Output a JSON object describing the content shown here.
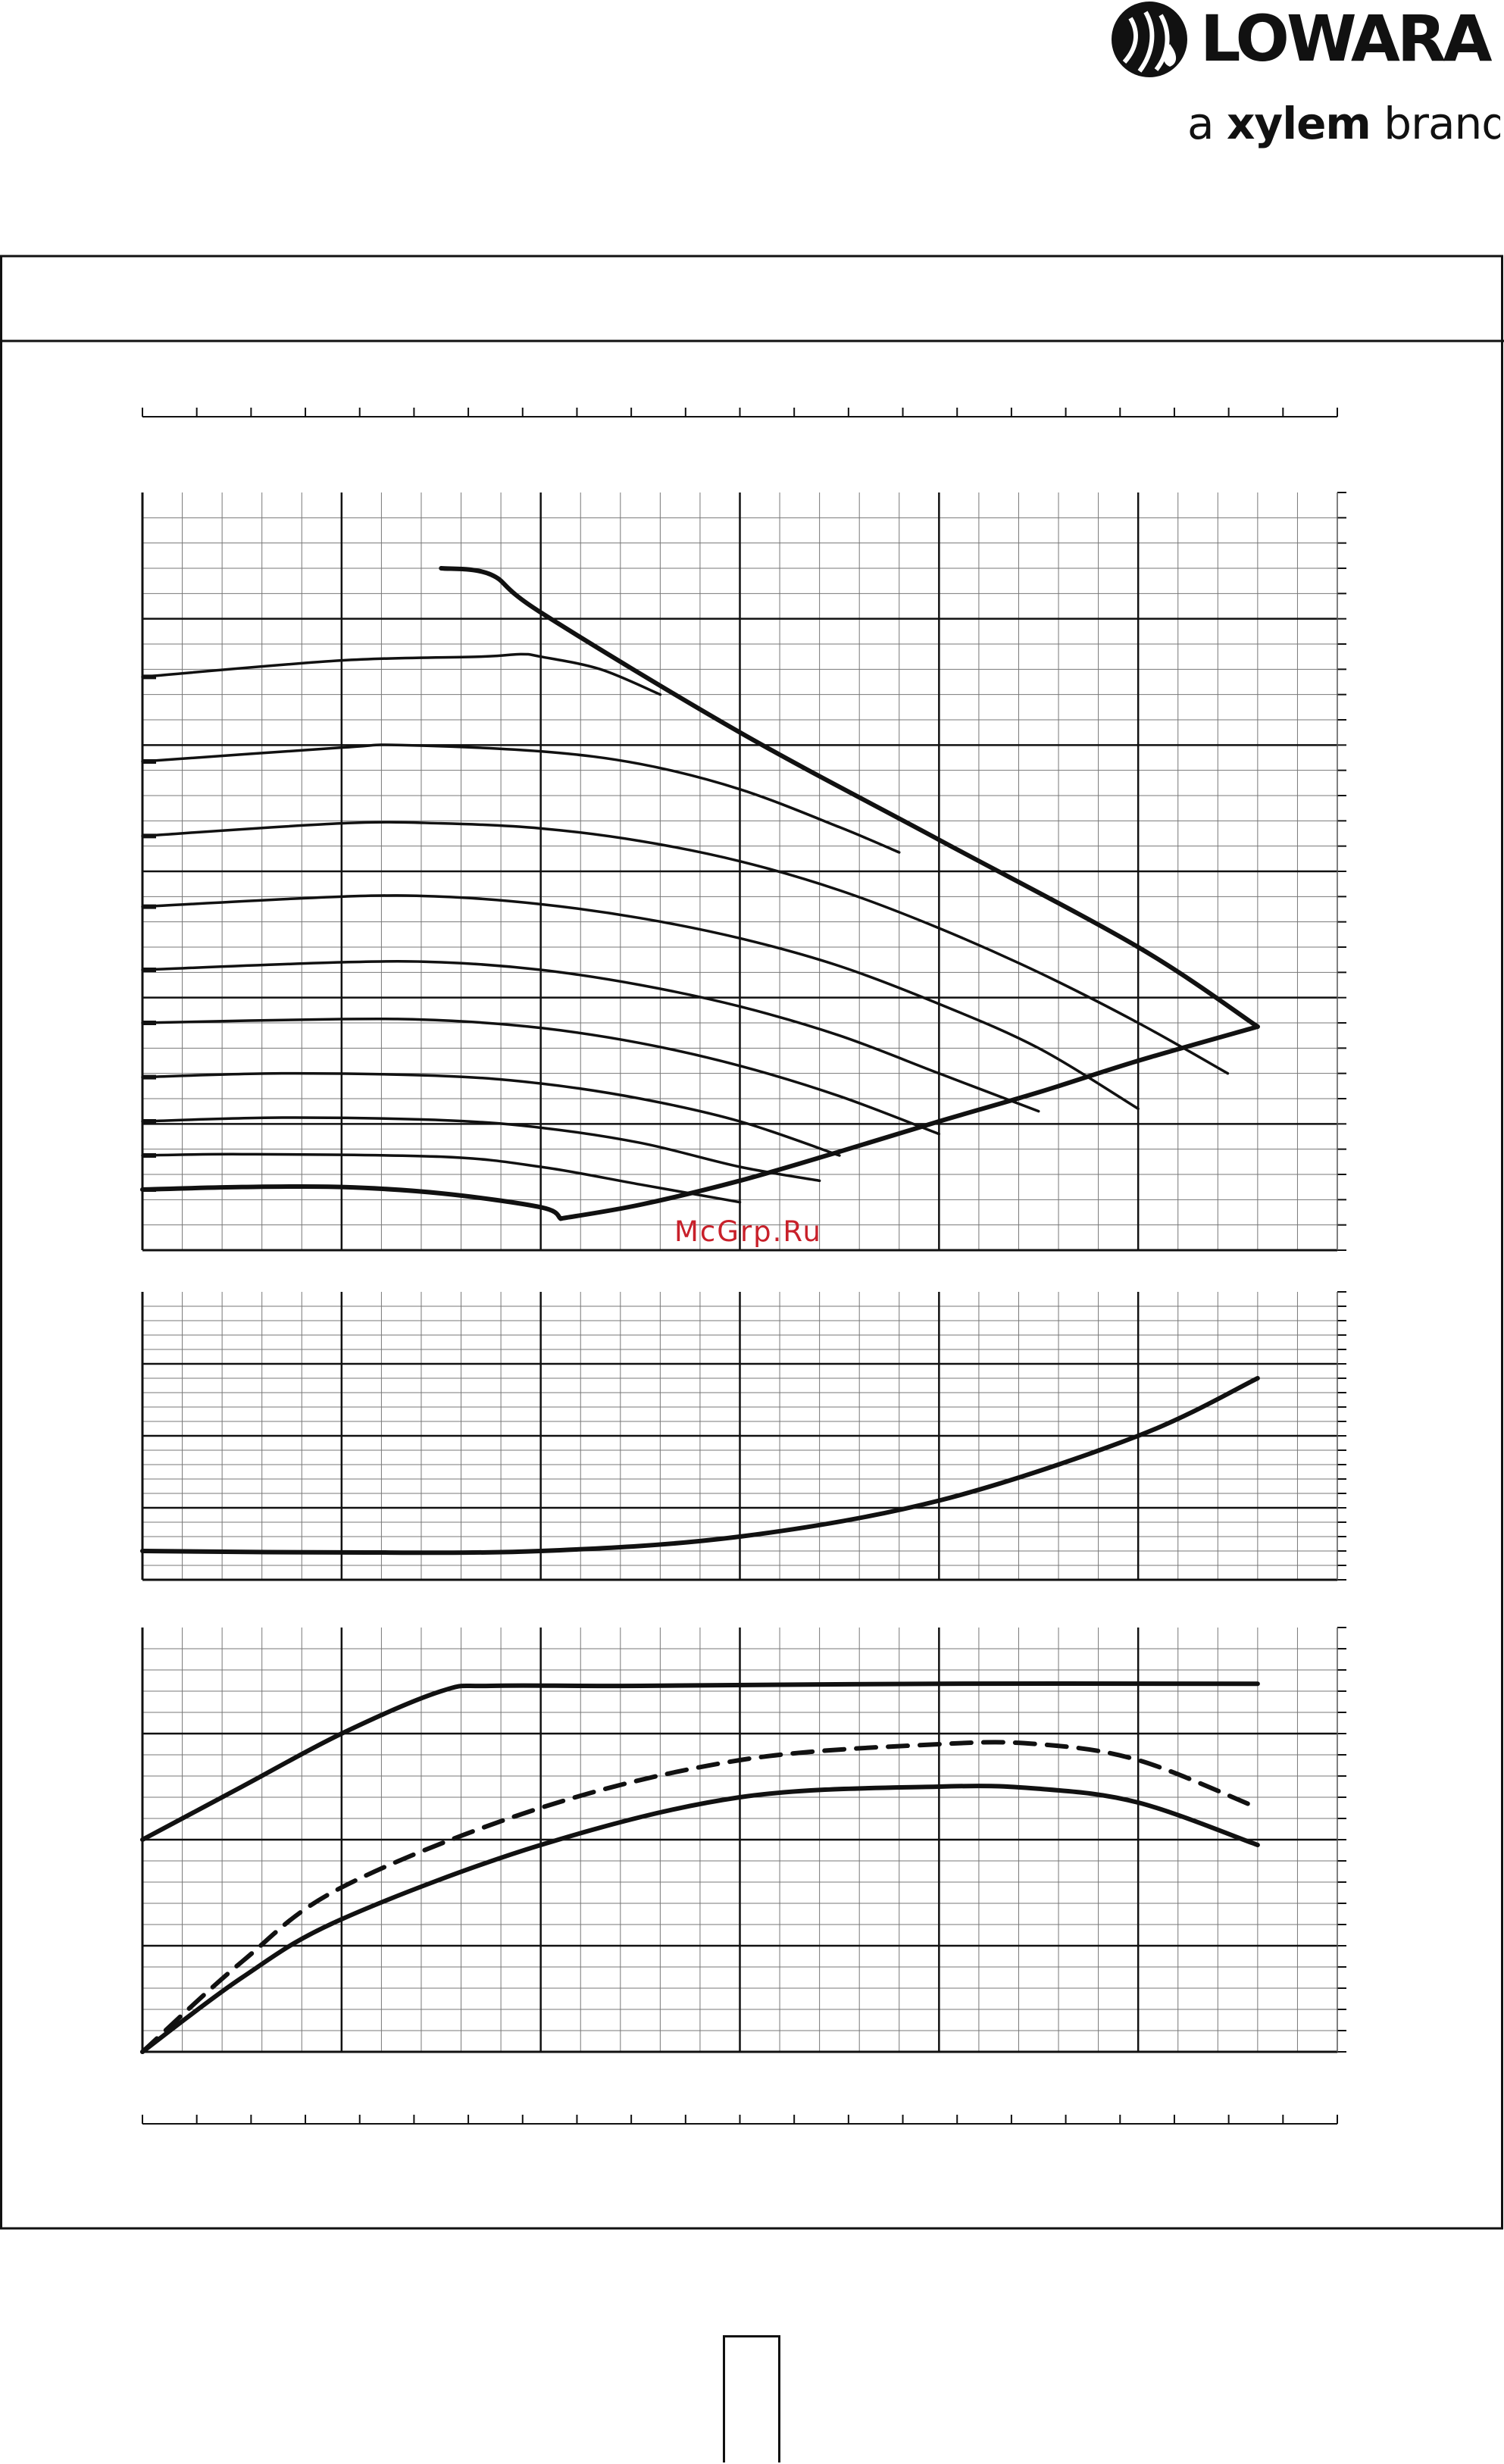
{
  "brand": {
    "name": "LOWARA",
    "tagline_prefix": "a ",
    "tagline_bold": "xylem",
    "tagline_suffix": " brand",
    "logo_icon": "lowara-drop-logo-icon",
    "color": "#111111"
  },
  "watermark": {
    "text": "McGrp.Ru",
    "color": "#c8202a"
  },
  "page_number": {
    "text": ""
  },
  "chart_data": [
    {
      "type": "line",
      "panel": "head-flow curves",
      "grid": true,
      "xlim": [
        0,
        6
      ],
      "ylim": [
        0,
        6
      ],
      "series": [
        {
          "style": "max-envelope",
          "values": [
            [
              1.5,
              5.4
            ],
            [
              1.75,
              5.35
            ],
            [
              2.0,
              5.05
            ],
            [
              3.0,
              4.1
            ],
            [
              4.0,
              3.25
            ],
            [
              5.0,
              2.4
            ],
            [
              5.6,
              1.77
            ]
          ]
        },
        {
          "style": "min-envelope",
          "values": [
            [
              2.1,
              0.25
            ],
            [
              2.5,
              0.36
            ],
            [
              3.0,
              0.55
            ],
            [
              3.5,
              0.78
            ],
            [
              4.0,
              1.02
            ],
            [
              4.5,
              1.25
            ],
            [
              5.0,
              1.5
            ],
            [
              5.6,
              1.77
            ]
          ]
        },
        {
          "style": "speed-curve",
          "values": [
            [
              0.0,
              4.54
            ],
            [
              1.0,
              4.67
            ],
            [
              1.7,
              4.7
            ],
            [
              1.9,
              4.72
            ],
            [
              2.0,
              4.7
            ],
            [
              2.3,
              4.6
            ],
            [
              2.6,
              4.4
            ]
          ]
        },
        {
          "style": "speed-curve",
          "values": [
            [
              0.0,
              3.87
            ],
            [
              1.0,
              3.98
            ],
            [
              1.3,
              4.0
            ],
            [
              2.0,
              3.95
            ],
            [
              2.5,
              3.85
            ],
            [
              3.0,
              3.65
            ],
            [
              3.5,
              3.35
            ],
            [
              3.8,
              3.15
            ]
          ]
        },
        {
          "style": "speed-curve",
          "values": [
            [
              0.0,
              3.28
            ],
            [
              1.0,
              3.38
            ],
            [
              1.5,
              3.38
            ],
            [
              2.0,
              3.34
            ],
            [
              2.5,
              3.24
            ],
            [
              3.0,
              3.08
            ],
            [
              3.5,
              2.85
            ],
            [
              4.0,
              2.55
            ],
            [
              4.5,
              2.2
            ],
            [
              5.0,
              1.8
            ],
            [
              5.45,
              1.4
            ]
          ]
        },
        {
          "style": "speed-curve",
          "values": [
            [
              0.0,
              2.72
            ],
            [
              1.0,
              2.8
            ],
            [
              1.5,
              2.8
            ],
            [
              2.0,
              2.74
            ],
            [
              2.5,
              2.63
            ],
            [
              3.0,
              2.47
            ],
            [
              3.5,
              2.25
            ],
            [
              4.0,
              1.95
            ],
            [
              4.5,
              1.6
            ],
            [
              5.0,
              1.12
            ]
          ]
        },
        {
          "style": "speed-curve",
          "values": [
            [
              0.0,
              2.22
            ],
            [
              1.0,
              2.28
            ],
            [
              1.5,
              2.28
            ],
            [
              2.0,
              2.22
            ],
            [
              2.5,
              2.1
            ],
            [
              3.0,
              1.93
            ],
            [
              3.5,
              1.7
            ],
            [
              4.0,
              1.4
            ],
            [
              4.5,
              1.1
            ]
          ]
        },
        {
          "style": "speed-curve",
          "values": [
            [
              0.0,
              1.8
            ],
            [
              1.0,
              1.83
            ],
            [
              1.5,
              1.82
            ],
            [
              2.0,
              1.76
            ],
            [
              2.5,
              1.64
            ],
            [
              3.0,
              1.46
            ],
            [
              3.5,
              1.22
            ],
            [
              4.0,
              0.92
            ]
          ]
        },
        {
          "style": "speed-curve",
          "values": [
            [
              0.0,
              1.37
            ],
            [
              0.7,
              1.4
            ],
            [
              1.5,
              1.38
            ],
            [
              2.0,
              1.32
            ],
            [
              2.5,
              1.2
            ],
            [
              3.0,
              1.02
            ],
            [
              3.5,
              0.75
            ]
          ]
        },
        {
          "style": "speed-curve",
          "values": [
            [
              0.0,
              1.02
            ],
            [
              0.7,
              1.05
            ],
            [
              1.5,
              1.03
            ],
            [
              2.0,
              0.97
            ],
            [
              2.5,
              0.85
            ],
            [
              3.0,
              0.66
            ],
            [
              3.4,
              0.55
            ]
          ]
        },
        {
          "style": "speed-curve",
          "values": [
            [
              0.0,
              0.75
            ],
            [
              0.5,
              0.76
            ],
            [
              1.5,
              0.74
            ],
            [
              2.0,
              0.66
            ],
            [
              2.5,
              0.52
            ],
            [
              3.0,
              0.38
            ]
          ]
        },
        {
          "style": "min-curve",
          "values": [
            [
              0.0,
              0.48
            ],
            [
              0.5,
              0.5
            ],
            [
              1.0,
              0.5
            ],
            [
              1.5,
              0.45
            ],
            [
              2.0,
              0.34
            ],
            [
              2.1,
              0.25
            ]
          ]
        }
      ]
    },
    {
      "type": "line",
      "panel": "NPSH",
      "grid": true,
      "xlim": [
        0,
        6
      ],
      "ylim": [
        0,
        4
      ],
      "series": [
        {
          "values": [
            [
              0.0,
              0.4
            ],
            [
              1.0,
              0.38
            ],
            [
              2.0,
              0.4
            ],
            [
              3.0,
              0.6
            ],
            [
              4.0,
              1.1
            ],
            [
              5.0,
              2.0
            ],
            [
              5.6,
              2.8
            ]
          ]
        }
      ]
    },
    {
      "type": "line",
      "panel": "power and efficiency",
      "grid": true,
      "xlim": [
        0,
        6
      ],
      "ylim": [
        0,
        4
      ],
      "series": [
        {
          "style": "power",
          "values": [
            [
              0.0,
              2.0
            ],
            [
              0.5,
              2.5
            ],
            [
              1.0,
              3.0
            ],
            [
              1.5,
              3.4
            ],
            [
              1.75,
              3.45
            ],
            [
              2.5,
              3.45
            ],
            [
              4.0,
              3.47
            ],
            [
              5.6,
              3.47
            ]
          ]
        },
        {
          "style": "efficiency-dashed",
          "values": [
            [
              0.0,
              0.0
            ],
            [
              0.5,
              0.85
            ],
            [
              1.0,
              1.55
            ],
            [
              2.0,
              2.3
            ],
            [
              3.0,
              2.75
            ],
            [
              4.0,
              2.9
            ],
            [
              4.5,
              2.9
            ],
            [
              5.0,
              2.75
            ],
            [
              5.6,
              2.3
            ]
          ]
        },
        {
          "style": "efficiency",
          "values": [
            [
              0.0,
              0.0
            ],
            [
              0.5,
              0.7
            ],
            [
              1.0,
              1.25
            ],
            [
              2.0,
              1.95
            ],
            [
              3.0,
              2.4
            ],
            [
              4.0,
              2.5
            ],
            [
              4.5,
              2.48
            ],
            [
              5.0,
              2.35
            ],
            [
              5.6,
              1.95
            ]
          ]
        }
      ]
    }
  ]
}
